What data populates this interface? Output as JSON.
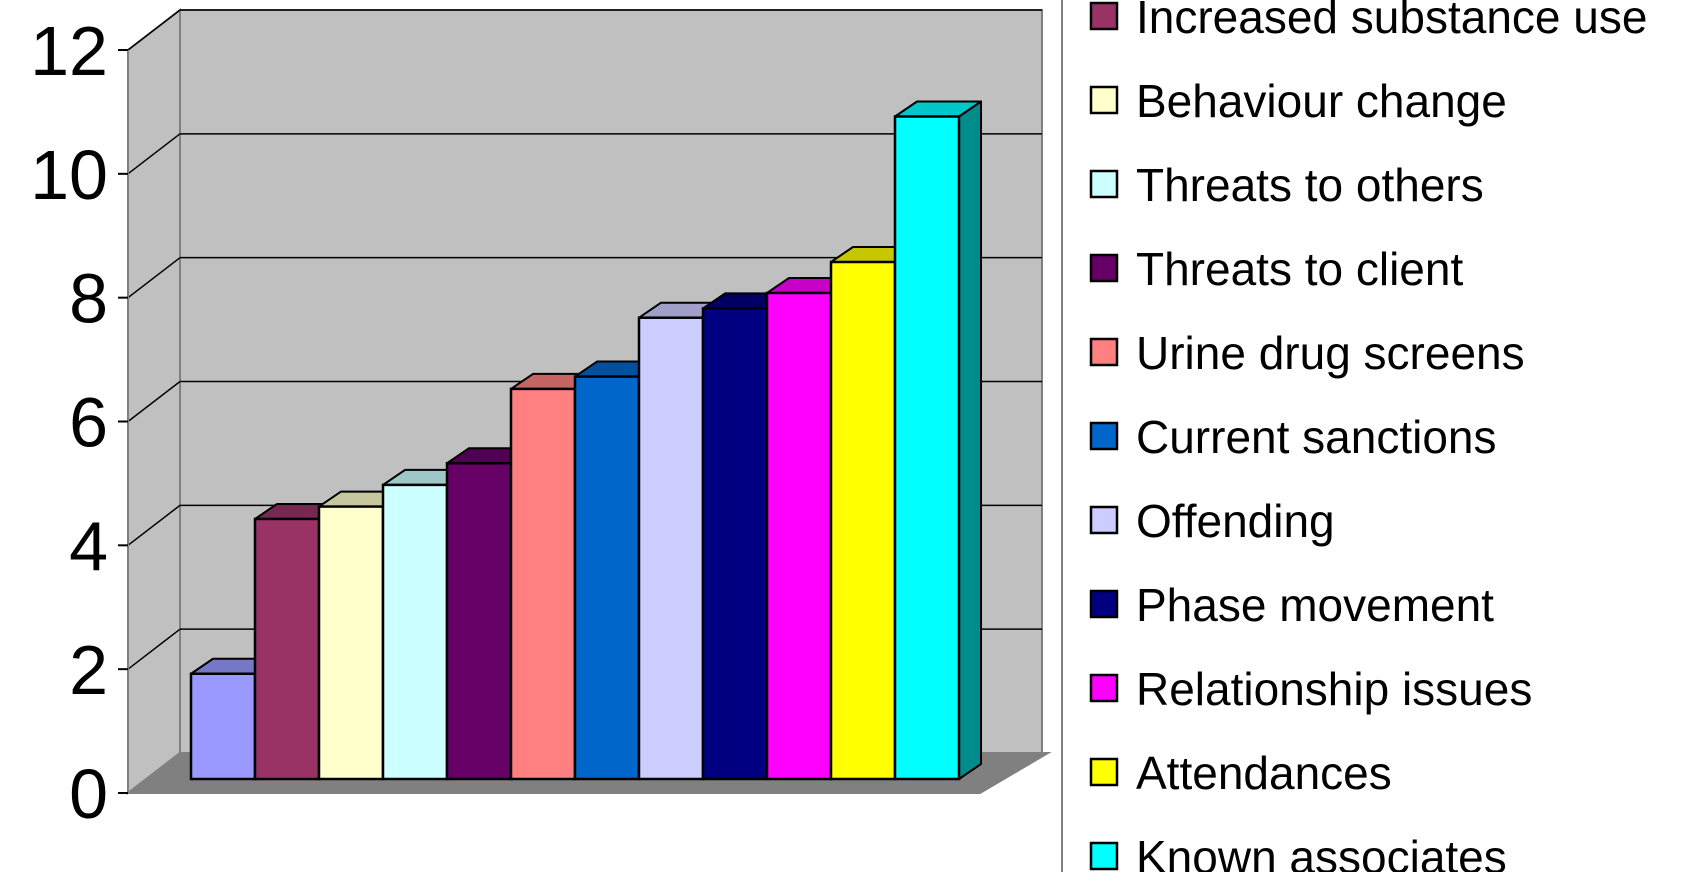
{
  "chart_data": {
    "type": "bar",
    "title": "",
    "xlabel": "",
    "ylabel": "",
    "ylim": [
      0,
      12
    ],
    "y_ticks": [
      "0",
      "2",
      "4",
      "6",
      "8",
      "10",
      "12"
    ],
    "grid": true,
    "legend_position": "right",
    "style": "3d",
    "categories": [
      "",
      "Increased substance use",
      "Behaviour change",
      "Threats to others",
      "Threats to client",
      "Urine drug screens",
      "Current sanctions",
      "Offending",
      "Phase movement",
      "Relationship issues",
      "Attendances",
      "Known associates"
    ],
    "values": [
      1.7,
      4.2,
      4.4,
      4.75,
      5.1,
      6.3,
      6.5,
      7.45,
      7.6,
      7.85,
      8.35,
      10.7
    ],
    "colors": [
      "#9999ff",
      "#993366",
      "#ffffcc",
      "#ccffff",
      "#660066",
      "#ff8080",
      "#0066cc",
      "#ccccff",
      "#000080",
      "#ff00ff",
      "#ffff00",
      "#00ffff"
    ],
    "legend": [
      {
        "label": "Increased substance use",
        "color": "#993366"
      },
      {
        "label": "Behaviour change",
        "color": "#ffffcc"
      },
      {
        "label": "Threats to others",
        "color": "#ccffff"
      },
      {
        "label": "Threats to client",
        "color": "#660066"
      },
      {
        "label": "Urine drug screens",
        "color": "#ff8080"
      },
      {
        "label": "Current sanctions",
        "color": "#0066cc"
      },
      {
        "label": "Offending",
        "color": "#ccccff"
      },
      {
        "label": "Phase movement",
        "color": "#000080"
      },
      {
        "label": "Relationship issues",
        "color": "#ff00ff"
      },
      {
        "label": "Attendances",
        "color": "#ffff00"
      },
      {
        "label": "Known associates",
        "color": "#00ffff"
      }
    ],
    "wall_color": "#c0c0c0",
    "floor_color": "#808080"
  }
}
